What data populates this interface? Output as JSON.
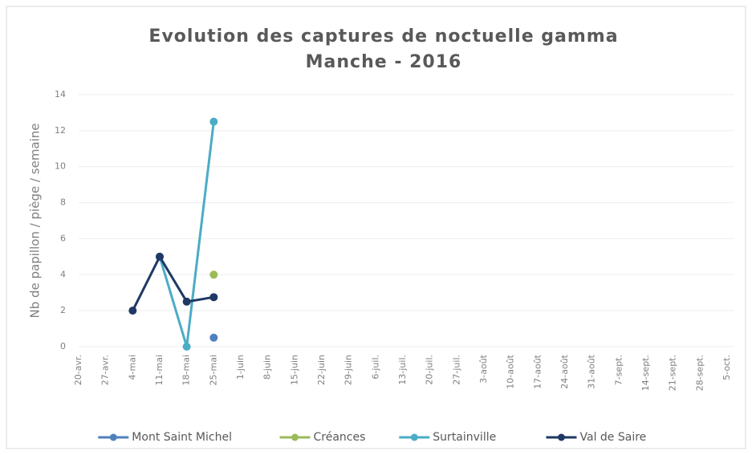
{
  "chart_data": {
    "type": "line",
    "title": "Evolution des captures de noctuelle gamma",
    "subtitle": "Manche  - 2016",
    "y_label": "Nb de papillon / piège / semaine",
    "categories": [
      "20-avr.",
      "27-avr.",
      "4-mai",
      "11-mai",
      "18-mai",
      "25-mai",
      "1-juin",
      "8-juin",
      "15-juin",
      "22-juin",
      "29-juin",
      "6-juil.",
      "13-juil.",
      "20-juil.",
      "27-juil.",
      "3-août",
      "10-août",
      "17-août",
      "24-août",
      "31-août",
      "7-sept.",
      "14-sept.",
      "21-sept.",
      "28-sept.",
      "5-oct."
    ],
    "series": [
      {
        "name": "Mont Saint Michel",
        "color": "#4f81bd",
        "values": [
          null,
          null,
          null,
          null,
          null,
          0.5,
          null,
          null,
          null,
          null,
          null,
          null,
          null,
          null,
          null,
          null,
          null,
          null,
          null,
          null,
          null,
          null,
          null,
          null,
          null
        ]
      },
      {
        "name": "Créances",
        "color": "#9bbb59",
        "values": [
          null,
          null,
          null,
          null,
          null,
          4,
          null,
          null,
          null,
          null,
          null,
          null,
          null,
          null,
          null,
          null,
          null,
          null,
          null,
          null,
          null,
          null,
          null,
          null,
          null
        ]
      },
      {
        "name": "Surtainville",
        "color": "#4bacc6",
        "values": [
          null,
          null,
          null,
          5,
          0,
          12.5,
          null,
          null,
          null,
          null,
          null,
          null,
          null,
          null,
          null,
          null,
          null,
          null,
          null,
          null,
          null,
          null,
          null,
          null,
          null
        ]
      },
      {
        "name": "Val de Saire",
        "color": "#1f3864",
        "values": [
          null,
          null,
          2,
          5,
          2.5,
          2.75,
          null,
          null,
          null,
          null,
          null,
          null,
          null,
          null,
          null,
          null,
          null,
          null,
          null,
          null,
          null,
          null,
          null,
          null,
          null
        ]
      }
    ],
    "ylim": [
      0,
      14
    ],
    "yticks": [
      0,
      2,
      4,
      6,
      8,
      10,
      12,
      14
    ],
    "grid": true,
    "legend": "bottom"
  }
}
